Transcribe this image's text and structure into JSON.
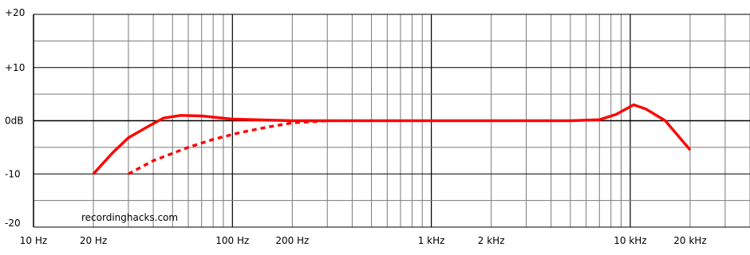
{
  "chart_data": {
    "type": "line",
    "title": "",
    "xlabel": "",
    "ylabel": "",
    "x_scale": "log",
    "xlim": [
      10,
      40000
    ],
    "ylim": [
      -20,
      20
    ],
    "grid": true,
    "x_tick_labels": [
      {
        "x": 10,
        "label": "10 Hz"
      },
      {
        "x": 20,
        "label": "20 Hz"
      },
      {
        "x": 100,
        "label": "100 Hz"
      },
      {
        "x": 200,
        "label": "200 Hz"
      },
      {
        "x": 1000,
        "label": "1 kHz"
      },
      {
        "x": 2000,
        "label": "2 kHz"
      },
      {
        "x": 10000,
        "label": "10 kHz"
      },
      {
        "x": 20000,
        "label": "20 kHz"
      }
    ],
    "y_tick_labels": [
      {
        "y": 20,
        "label": "+20"
      },
      {
        "y": 10,
        "label": "+10"
      },
      {
        "y": 0,
        "label": "0dB"
      },
      {
        "y": -10,
        "label": "-10"
      },
      {
        "y": -20,
        "label": "-20"
      }
    ],
    "series": [
      {
        "style": "solid",
        "color": "#ff0000",
        "points": [
          [
            20,
            -10
          ],
          [
            25,
            -6
          ],
          [
            30,
            -3.2
          ],
          [
            38,
            -1
          ],
          [
            45,
            0.5
          ],
          [
            55,
            1
          ],
          [
            70,
            0.9
          ],
          [
            100,
            0.3
          ],
          [
            200,
            0
          ],
          [
            1000,
            0
          ],
          [
            5000,
            0
          ],
          [
            7000,
            0.2
          ],
          [
            8500,
            1.2
          ],
          [
            10400,
            3
          ],
          [
            12000,
            2.2
          ],
          [
            15000,
            0
          ],
          [
            20000,
            -5.5
          ]
        ]
      },
      {
        "style": "dashed",
        "color": "#ff0000",
        "points": [
          [
            30,
            -10
          ],
          [
            40,
            -7.5
          ],
          [
            60,
            -5
          ],
          [
            80,
            -3.5
          ],
          [
            110,
            -2.2
          ],
          [
            150,
            -1.2
          ],
          [
            200,
            -0.4
          ],
          [
            300,
            0
          ]
        ]
      }
    ],
    "watermark": "recordinghacks.com"
  }
}
